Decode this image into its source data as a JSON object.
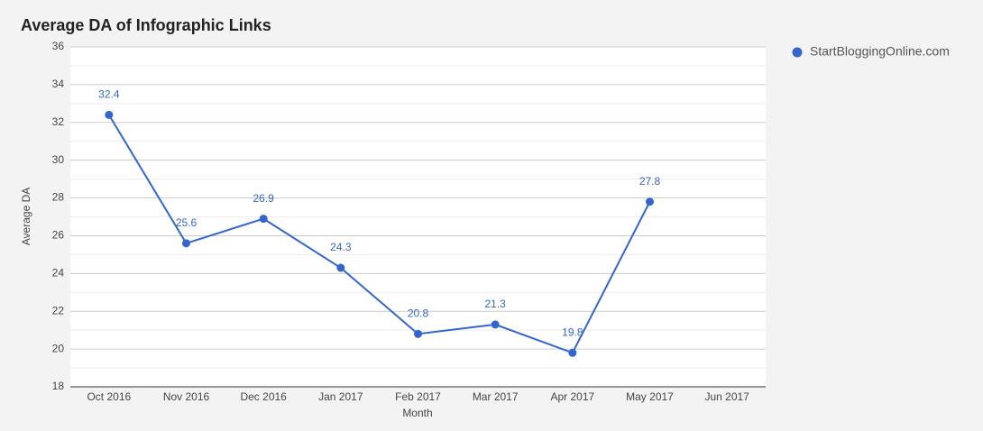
{
  "chart_data": {
    "type": "line",
    "title": "Average DA of Infographic Links",
    "x_label": "Month",
    "y_label": "Average DA",
    "categories": [
      "Oct 2016",
      "Nov 2016",
      "Dec 2016",
      "Jan 2017",
      "Feb 2017",
      "Mar 2017",
      "Apr 2017",
      "May 2017",
      "Jun 2017"
    ],
    "series": [
      {
        "name": "StartBloggingOnline.com",
        "color": "#3366cc",
        "values": [
          32.4,
          25.6,
          26.9,
          24.3,
          20.8,
          21.3,
          19.8,
          27.8,
          null
        ]
      }
    ],
    "ylim": [
      18,
      36
    ],
    "yticks": [
      18,
      20,
      22,
      24,
      26,
      28,
      30,
      32,
      34,
      36
    ],
    "grid": true,
    "minor_grid": true,
    "data_labels": true,
    "legend": "right"
  }
}
